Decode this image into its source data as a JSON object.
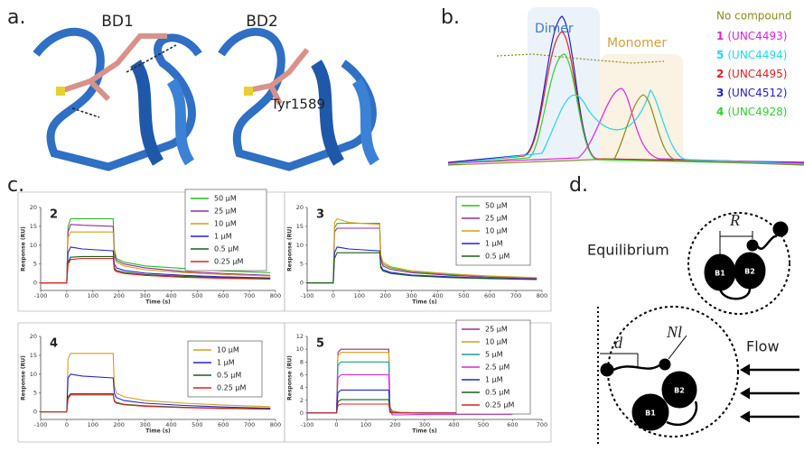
{
  "figure": {
    "panel_a": {
      "label": "a.",
      "bd1": "BD1",
      "bd2": "BD2",
      "residue": "Tyr1589"
    },
    "panel_b": {
      "label": "b.",
      "dimer": "Dimer",
      "monomer": "Monomer",
      "no_compound": "No compound",
      "legend": [
        {
          "number": "1",
          "name": "(UNC4493)",
          "color": "#e020e0"
        },
        {
          "number": "5",
          "name": "(UNC4494)",
          "color": "#20d8e8"
        },
        {
          "number": "2",
          "name": "(UNC4495)",
          "color": "#e02020"
        },
        {
          "number": "3",
          "name": "(UNC4512)",
          "color": "#2020cc"
        },
        {
          "number": "4",
          "name": "(UNC4928)",
          "color": "#30d030"
        }
      ]
    },
    "panel_c": {
      "label": "c."
    },
    "panel_d": {
      "label": "d.",
      "equilibrium": "Equilibrium",
      "r": "R",
      "d": "d",
      "nl": "Nl",
      "flow": "Flow",
      "b1": "B1",
      "b2": "B2"
    }
  },
  "chart_data": [
    {
      "type": "line",
      "title": "2",
      "x_label": "Time (s)",
      "y_label": "Response (RU)",
      "x": [
        -100,
        -5,
        0,
        5,
        15,
        60,
        178,
        182,
        190,
        220,
        300,
        450,
        600,
        780
      ],
      "xlim": [
        -100,
        800
      ],
      "ylim": [
        -2,
        20
      ],
      "xticks": [
        -100,
        0,
        100,
        200,
        300,
        400,
        500,
        600,
        700,
        800
      ],
      "yticks": [
        0,
        5,
        10,
        15,
        20
      ],
      "series": [
        {
          "name": "50 µM",
          "color": "#22c022",
          "values": [
            0,
            0,
            0,
            15,
            17,
            17,
            17,
            9,
            6.5,
            5.5,
            4.5,
            3.8,
            3.2,
            2.7
          ]
        },
        {
          "name": "25 µM",
          "color": "#9b2a9b",
          "values": [
            0,
            0,
            0,
            13.5,
            15.5,
            15.3,
            15,
            8,
            6,
            5,
            4,
            3,
            2.5,
            2
          ]
        },
        {
          "name": "10 µM",
          "color": "#d4a017",
          "values": [
            0,
            0,
            0,
            12,
            13.5,
            13.5,
            13.5,
            7,
            5.5,
            4.5,
            3.5,
            2.7,
            2.2,
            1.8
          ]
        },
        {
          "name": "1 µM",
          "color": "#2222dd",
          "values": [
            0,
            0,
            0,
            8,
            9.5,
            9,
            8.5,
            5,
            4,
            3.3,
            2.6,
            2,
            1.6,
            1.3
          ]
        },
        {
          "name": "0.5 µM",
          "color": "#1a5e1a",
          "values": [
            0,
            0,
            0,
            5.5,
            6.8,
            7,
            7,
            4,
            3.3,
            2.8,
            2.2,
            1.7,
            1.4,
            1.1
          ]
        },
        {
          "name": "0.25 µM",
          "color": "#e02020",
          "values": [
            0,
            0,
            0,
            5,
            6.2,
            6.5,
            6.5,
            3.5,
            3,
            2.5,
            2,
            1.5,
            1.2,
            1
          ]
        }
      ]
    },
    {
      "type": "line",
      "title": "3",
      "x_label": "Time (s)",
      "y_label": "Response (RU)",
      "x": [
        -100,
        -5,
        0,
        5,
        15,
        60,
        178,
        182,
        190,
        220,
        300,
        450,
        600,
        780
      ],
      "xlim": [
        -100,
        800
      ],
      "ylim": [
        -2,
        20
      ],
      "xticks": [
        -100,
        0,
        100,
        200,
        300,
        400,
        500,
        600,
        700,
        800
      ],
      "yticks": [
        0,
        5,
        10,
        15,
        20
      ],
      "series": [
        {
          "name": "50 µM",
          "color": "#22c022",
          "values": [
            0,
            0,
            0,
            14.5,
            15.8,
            15.8,
            15.8,
            7,
            5,
            4,
            3,
            2.2,
            1.7,
            1.3
          ]
        },
        {
          "name": "25 µM",
          "color": "#9b2a9b",
          "values": [
            0,
            0,
            0,
            13.5,
            14.5,
            14.5,
            14.5,
            6.5,
            4.5,
            3.6,
            2.7,
            2,
            1.5,
            1.2
          ]
        },
        {
          "name": "10 µM",
          "color": "#d4a017",
          "values": [
            0,
            0,
            0,
            16,
            17,
            16,
            15.5,
            7.5,
            5.5,
            4.3,
            3.2,
            2.4,
            1.8,
            1.4
          ]
        },
        {
          "name": "1 µM",
          "color": "#2222dd",
          "values": [
            0,
            0,
            0,
            8,
            9.5,
            9,
            8.5,
            4.5,
            3.5,
            2.8,
            2.1,
            1.6,
            1.2,
            1
          ]
        },
        {
          "name": "0.5 µM",
          "color": "#1a5e1a",
          "values": [
            0,
            0,
            0,
            6.5,
            8,
            8,
            8,
            4,
            3.2,
            2.5,
            1.9,
            1.4,
            1.1,
            0.9
          ]
        }
      ]
    },
    {
      "type": "line",
      "title": "4",
      "x_label": "Time (s)",
      "y_label": "Response (RU)",
      "x": [
        -100,
        -5,
        0,
        5,
        15,
        60,
        178,
        182,
        190,
        220,
        300,
        450,
        600,
        780
      ],
      "xlim": [
        -100,
        800
      ],
      "ylim": [
        -2,
        20
      ],
      "xticks": [
        -100,
        0,
        100,
        200,
        300,
        400,
        500,
        600,
        700,
        800
      ],
      "yticks": [
        0,
        5,
        10,
        15,
        20
      ],
      "series": [
        {
          "name": "10 µM",
          "color": "#d4a017",
          "values": [
            0,
            0,
            0,
            14,
            15.5,
            15.5,
            15.5,
            7,
            5,
            4,
            3,
            2.3,
            1.8,
            1.4
          ]
        },
        {
          "name": "1 µM",
          "color": "#2222dd",
          "values": [
            0,
            0,
            0,
            9,
            10,
            9.5,
            9,
            5,
            3.8,
            3,
            2.3,
            1.7,
            1.3,
            1
          ]
        },
        {
          "name": "0.5 µM",
          "color": "#1a5e1a",
          "values": [
            0,
            0,
            0,
            4,
            4.8,
            4.8,
            4.8,
            3,
            2.5,
            2,
            1.6,
            1.2,
            1,
            0.8
          ]
        },
        {
          "name": "0.25 µM",
          "color": "#e02020",
          "values": [
            0,
            0,
            0,
            3.5,
            4.5,
            4.5,
            4.5,
            2.8,
            2.3,
            1.9,
            1.5,
            1.1,
            0.9,
            0.7
          ]
        }
      ]
    },
    {
      "type": "line",
      "title": "5",
      "x_label": "Time (s)",
      "y_label": "Response (RU)",
      "x": [
        -100,
        -5,
        0,
        5,
        15,
        60,
        178,
        182,
        190,
        220,
        300,
        450,
        600
      ],
      "xlim": [
        -100,
        700
      ],
      "ylim": [
        -1,
        12
      ],
      "xticks": [
        -100,
        0,
        100,
        200,
        300,
        400,
        500,
        600,
        700
      ],
      "yticks": [
        0,
        2,
        4,
        6,
        8,
        10,
        12
      ],
      "series": [
        {
          "name": "25 µM",
          "color": "#9b2a9b",
          "values": [
            0,
            0,
            0,
            9.5,
            10,
            10,
            10,
            1,
            0.3,
            0.1,
            0,
            0,
            0
          ]
        },
        {
          "name": "10 µM",
          "color": "#d4a017",
          "values": [
            0,
            0,
            0,
            9,
            9.5,
            9.5,
            9.5,
            1,
            0.3,
            0.1,
            0,
            0,
            0
          ]
        },
        {
          "name": "5 µM",
          "color": "#1a9a9a",
          "values": [
            0,
            0,
            0,
            7.5,
            8,
            8,
            8,
            0.8,
            0.2,
            0,
            0,
            0,
            0
          ]
        },
        {
          "name": "2.5 µM",
          "color": "#e020e0",
          "values": [
            0,
            0,
            0,
            5.5,
            6,
            6,
            6,
            0.5,
            -0.3,
            -0.3,
            -0.2,
            -0.2,
            -0.2
          ]
        },
        {
          "name": "1 µM",
          "color": "#2222dd",
          "values": [
            0,
            0,
            0,
            3.2,
            3.6,
            3.6,
            3.6,
            0.3,
            0,
            0,
            0,
            0,
            0
          ]
        },
        {
          "name": "0.5 µM",
          "color": "#1a5e1a",
          "values": [
            0,
            0,
            0,
            1.8,
            2.1,
            2.1,
            2.1,
            0.2,
            0,
            0,
            0,
            0,
            0
          ]
        },
        {
          "name": "0.25 µM",
          "color": "#e02020",
          "values": [
            0,
            0,
            0,
            1.2,
            1.4,
            1.4,
            1.4,
            0.1,
            0,
            0,
            0,
            0,
            0
          ]
        }
      ]
    }
  ]
}
